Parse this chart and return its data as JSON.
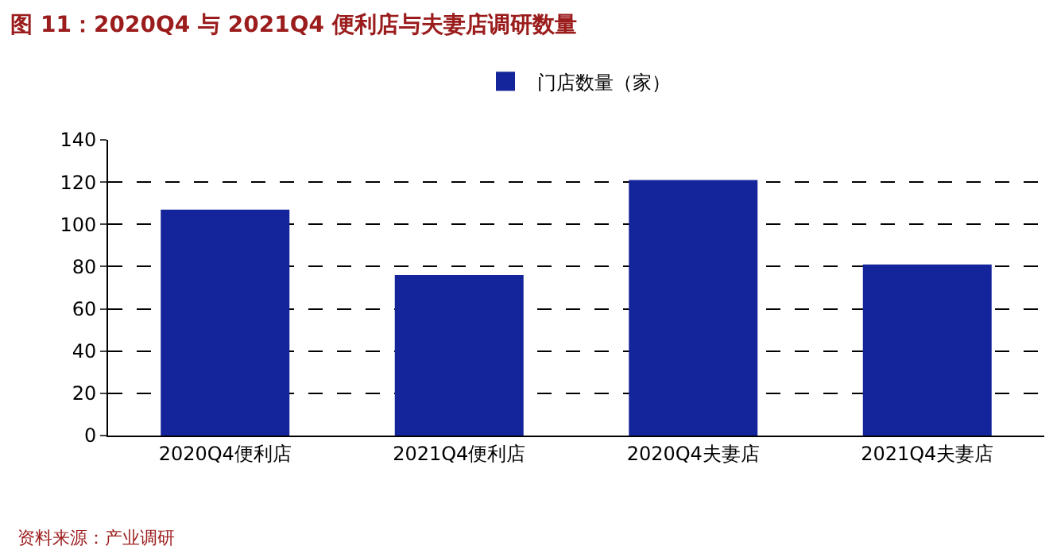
{
  "chart_data": {
    "type": "bar",
    "title": "图 11：2020Q4 与 2021Q4 便利店与夫妻店调研数量",
    "categories": [
      "2020Q4便利店",
      "2021Q4便利店",
      "2020Q4夫妻店",
      "2021Q4夫妻店"
    ],
    "series": [
      {
        "name": "门店数量（家）",
        "color": "#14249a",
        "values": [
          107,
          76,
          121,
          81
        ]
      }
    ],
    "ylim": [
      0,
      140
    ],
    "yticks": [
      0,
      20,
      40,
      60,
      80,
      100,
      120,
      140
    ],
    "grid": "y",
    "legend": "top",
    "annotations": [
      "资料来源：产业调研"
    ]
  }
}
